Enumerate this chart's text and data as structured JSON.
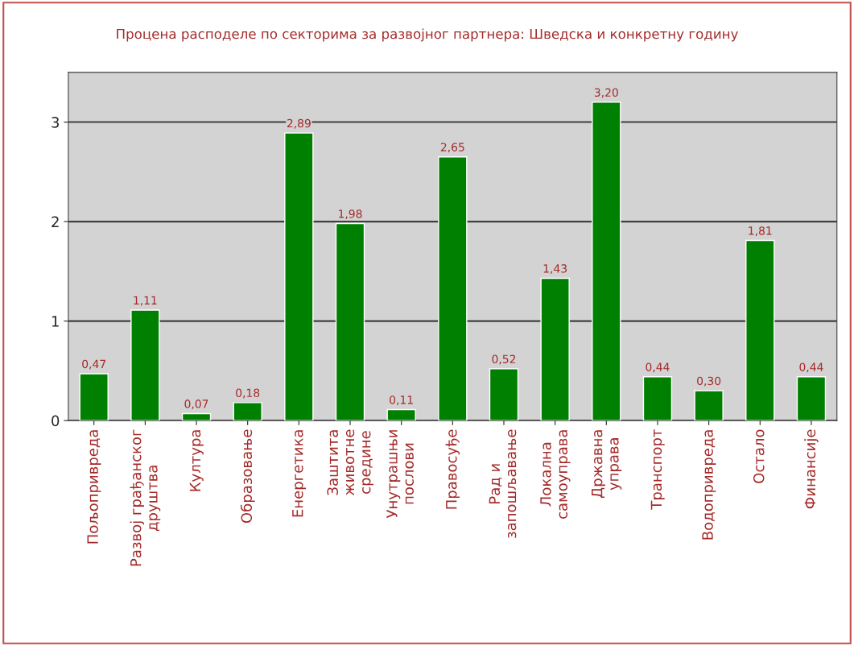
{
  "chart_data": {
    "type": "bar",
    "title": "Процена расподеле по секторима за развојног партнера: Шведска и конкретну годину",
    "categories": [
      "Пољопривреда",
      "Развој грађанског\nдруштва",
      "Култура",
      "Образовање",
      "Енергетика",
      "Заштита\nживотне\nсредине",
      "Унутрашњи\nпослови",
      "Правосуђе",
      "Рад и\nзапошљавање",
      "Локална\nсамоуправа",
      "Државна\nуправа",
      "Транспорт",
      "Водопривреда",
      "Остало",
      "Финансије"
    ],
    "values": [
      0.47,
      1.11,
      0.07,
      0.18,
      2.89,
      1.98,
      0.11,
      2.65,
      0.52,
      1.43,
      3.2,
      0.44,
      0.3,
      1.81,
      0.44
    ],
    "value_labels": [
      "0,47",
      "1,11",
      "0,07",
      "0,18",
      "2,89",
      "1,98",
      "0,11",
      "2,65",
      "0,52",
      "1,43",
      "3,20",
      "0,44",
      "0,30",
      "1,81",
      "0,44"
    ],
    "color": "#008000",
    "ylim": [
      0,
      3.5
    ],
    "yticks": [
      0,
      1,
      2,
      3
    ],
    "grid": "y"
  }
}
